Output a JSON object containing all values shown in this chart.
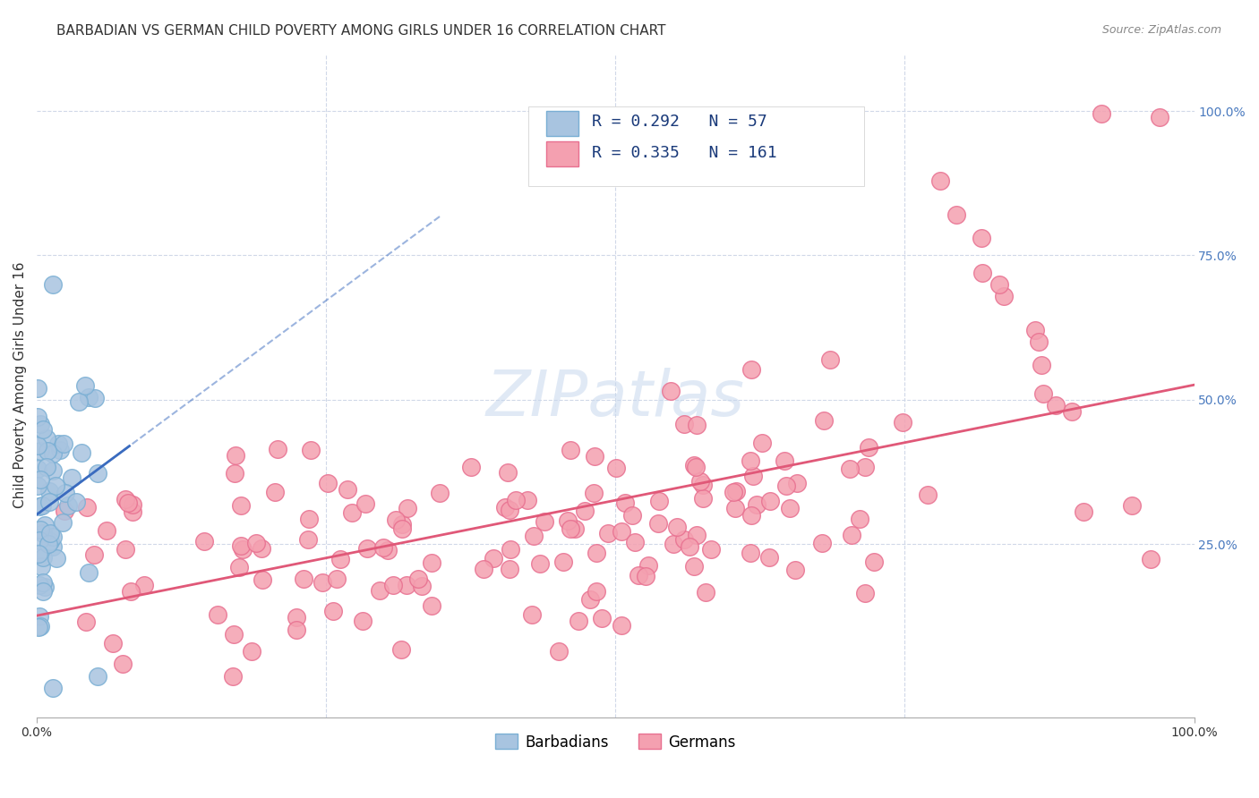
{
  "title": "BARBADIAN VS GERMAN CHILD POVERTY AMONG GIRLS UNDER 16 CORRELATION CHART",
  "source": "Source: ZipAtlas.com",
  "xlabel": "",
  "ylabel": "Child Poverty Among Girls Under 16",
  "xlim": [
    0.0,
    1.0
  ],
  "ylim": [
    -0.05,
    1.1
  ],
  "x_tick_labels": [
    "0.0%",
    "100.0%"
  ],
  "x_tick_positions": [
    0.0,
    1.0
  ],
  "y_tick_labels": [
    "100.0%",
    "75.0%",
    "50.0%",
    "25.0%"
  ],
  "y_tick_positions": [
    1.0,
    0.75,
    0.5,
    0.25
  ],
  "barbadian_color": "#a8c4e0",
  "german_color": "#f4a0b0",
  "barbadian_edge": "#7aafd4",
  "german_edge": "#e87090",
  "blue_line_color": "#3a6bbf",
  "pink_line_color": "#e05878",
  "legend_barbadian_R": "R = 0.292",
  "legend_barbadian_N": "N = 57",
  "legend_german_R": "R = 0.335",
  "legend_german_N": "N = 161",
  "watermark": "ZIPatlas",
  "background_color": "#ffffff",
  "grid_color": "#d0d8e8",
  "barbadian_N": 57,
  "german_N": 161,
  "barbadian_R": 0.292,
  "german_R": 0.335,
  "title_fontsize": 11,
  "axis_label_fontsize": 11,
  "tick_fontsize": 10,
  "legend_fontsize": 13
}
